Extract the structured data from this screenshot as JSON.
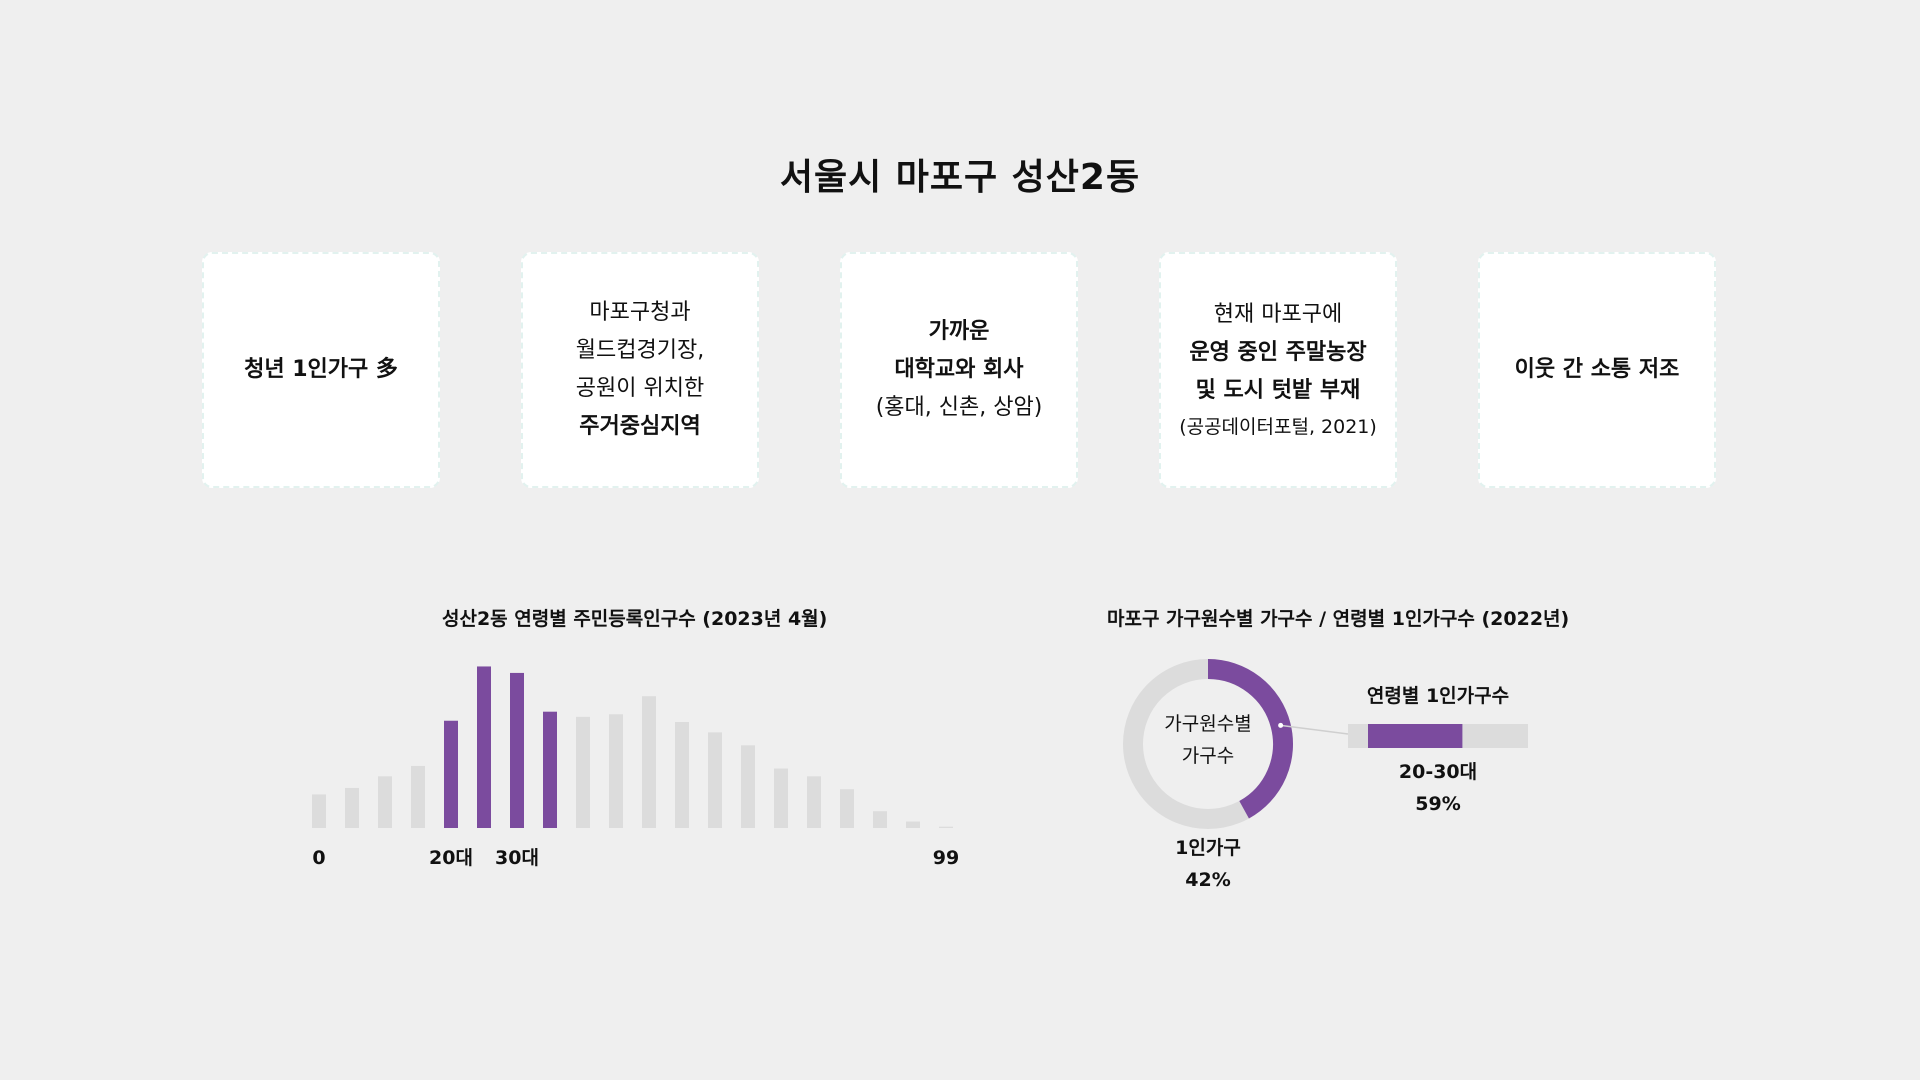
{
  "page": {
    "title": "서울시 마포구 성산2동"
  },
  "cards": [
    {
      "lines": [
        {
          "text": "청년 1인가구 多",
          "style": "b"
        }
      ]
    },
    {
      "lines": [
        {
          "text": "마포구청과",
          "style": ""
        },
        {
          "text": "월드컵경기장,",
          "style": ""
        },
        {
          "text": "공원이 위치한",
          "style": ""
        },
        {
          "text": "주거중심지역",
          "style": "b"
        }
      ]
    },
    {
      "lines": [
        {
          "text": "가까운",
          "style": "b"
        },
        {
          "text": "대학교와 회사",
          "style": "b"
        },
        {
          "text": "(홍대, 신촌, 상암)",
          "style": ""
        }
      ]
    },
    {
      "lines": [
        {
          "text": "현재 마포구에",
          "style": ""
        },
        {
          "text": "운영 중인 주말농장",
          "style": "b"
        },
        {
          "text": "및 도시 텃밭 부재",
          "style": "b"
        },
        {
          "text": "(공공데이터포털, 2021)",
          "style": "s"
        }
      ]
    },
    {
      "lines": [
        {
          "text": "이웃 간 소통 저조",
          "style": "b"
        }
      ]
    }
  ],
  "colors": {
    "highlight": "#7b4b9e",
    "muted": "#dcdcdc",
    "background": "#efefef"
  },
  "chart_data": [
    {
      "type": "bar",
      "title": "성산2동 연령별 주민등록인구수 (2023년 4월)",
      "x_labels": [
        {
          "label": "0",
          "index": 0
        },
        {
          "label": "20대",
          "index": 4
        },
        {
          "label": "30대",
          "index": 6
        },
        {
          "label": "99",
          "index": 19
        }
      ],
      "values": [
        26,
        31,
        40,
        48,
        83,
        125,
        120,
        90,
        86,
        88,
        102,
        82,
        74,
        64,
        46,
        40,
        30,
        13,
        5,
        1
      ],
      "highlighted_indices": [
        4,
        5,
        6,
        7
      ],
      "ylim": [
        0,
        130
      ],
      "grid": false,
      "legend": "none"
    },
    {
      "type": "pie",
      "title": "마포구 가구원수별 가구수 / 연령별 1인가구수 (2022년)",
      "center_label": [
        "가구원수별",
        "가구수"
      ],
      "slices": [
        {
          "label": "1인가구",
          "value": 42,
          "display": "42%"
        },
        {
          "label": "",
          "value": 58,
          "display": ""
        }
      ]
    },
    {
      "type": "bar",
      "title": "연령별 1인가구수",
      "orientation": "horizontal",
      "stacked": true,
      "segments": [
        {
          "label": "20-30대",
          "value": 59,
          "display": "59%"
        },
        {
          "label": "",
          "value": 41,
          "display": ""
        }
      ],
      "xlim": [
        0,
        100
      ]
    }
  ]
}
